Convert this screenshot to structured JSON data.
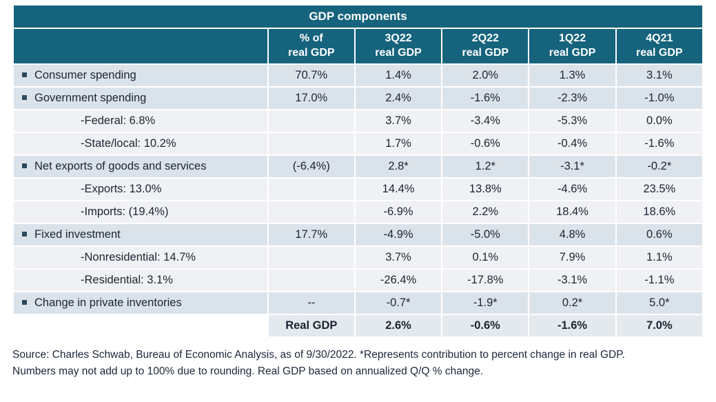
{
  "chart_data": {
    "type": "table",
    "title": "GDP components",
    "column_headers": [
      "",
      "% of\nreal GDP",
      "3Q22\nreal GDP",
      "2Q22\nreal GDP",
      "1Q22\nreal GDP",
      "4Q21\nreal GDP"
    ],
    "rows": [
      {
        "label": "Consumer spending",
        "bullet": true,
        "indent": false,
        "total": false,
        "cells": [
          "70.7%",
          "1.4%",
          "2.0%",
          "1.3%",
          "3.1%"
        ]
      },
      {
        "label": "Government spending",
        "bullet": true,
        "indent": false,
        "total": false,
        "cells": [
          "17.0%",
          "2.4%",
          "-1.6%",
          "-2.3%",
          "-1.0%"
        ]
      },
      {
        "label": "-Federal: 6.8%",
        "bullet": false,
        "indent": true,
        "total": false,
        "cells": [
          "",
          "3.7%",
          "-3.4%",
          "-5.3%",
          "0.0%"
        ]
      },
      {
        "label": "-State/local: 10.2%",
        "bullet": false,
        "indent": true,
        "total": false,
        "cells": [
          "",
          "1.7%",
          "-0.6%",
          "-0.4%",
          "-1.6%"
        ]
      },
      {
        "label": "Net exports of goods and services",
        "bullet": true,
        "indent": false,
        "total": false,
        "cells": [
          "(-6.4%)",
          "2.8*",
          "1.2*",
          "-3.1*",
          "-0.2*"
        ]
      },
      {
        "label": "-Exports: 13.0%",
        "bullet": false,
        "indent": true,
        "total": false,
        "cells": [
          "",
          "14.4%",
          "13.8%",
          "-4.6%",
          "23.5%"
        ]
      },
      {
        "label": "-Imports: (19.4%)",
        "bullet": false,
        "indent": true,
        "total": false,
        "cells": [
          "",
          "-6.9%",
          "2.2%",
          "18.4%",
          "18.6%"
        ]
      },
      {
        "label": "Fixed investment",
        "bullet": true,
        "indent": false,
        "total": false,
        "cells": [
          "17.7%",
          "-4.9%",
          "-5.0%",
          "4.8%",
          "0.6%"
        ]
      },
      {
        "label": "-Nonresidential: 14.7%",
        "bullet": false,
        "indent": true,
        "total": false,
        "cells": [
          "",
          "3.7%",
          "0.1%",
          "7.9%",
          "1.1%"
        ]
      },
      {
        "label": "-Residential: 3.1%",
        "bullet": false,
        "indent": true,
        "total": false,
        "cells": [
          "",
          "-26.4%",
          "-17.8%",
          "-3.1%",
          "-1.1%"
        ]
      },
      {
        "label": "Change in private inventories",
        "bullet": true,
        "indent": false,
        "total": false,
        "cells": [
          "--",
          "-0.7*",
          "-1.9*",
          "0.2*",
          "5.0*"
        ]
      },
      {
        "label": "",
        "bullet": false,
        "indent": false,
        "total": true,
        "cells": [
          "Real GDP",
          "2.6%",
          "-0.6%",
          "-1.6%",
          "7.0%"
        ]
      }
    ]
  },
  "source": {
    "text": "Source: Charles Schwab, Bureau of Economic Analysis, as of 9/30/2022. *Represents contribution to percent change in real GDP. Numbers may not add up to 100% due to rounding. Real GDP based on annualized Q/Q % change."
  },
  "colors": {
    "header_bg": "#16637D",
    "row_main": "#DBE3EA",
    "row_sub": "#EFF1F4",
    "total_row": "#E4E9EE",
    "bullet": "#2E4A5E",
    "source_text": "#1A2638"
  }
}
